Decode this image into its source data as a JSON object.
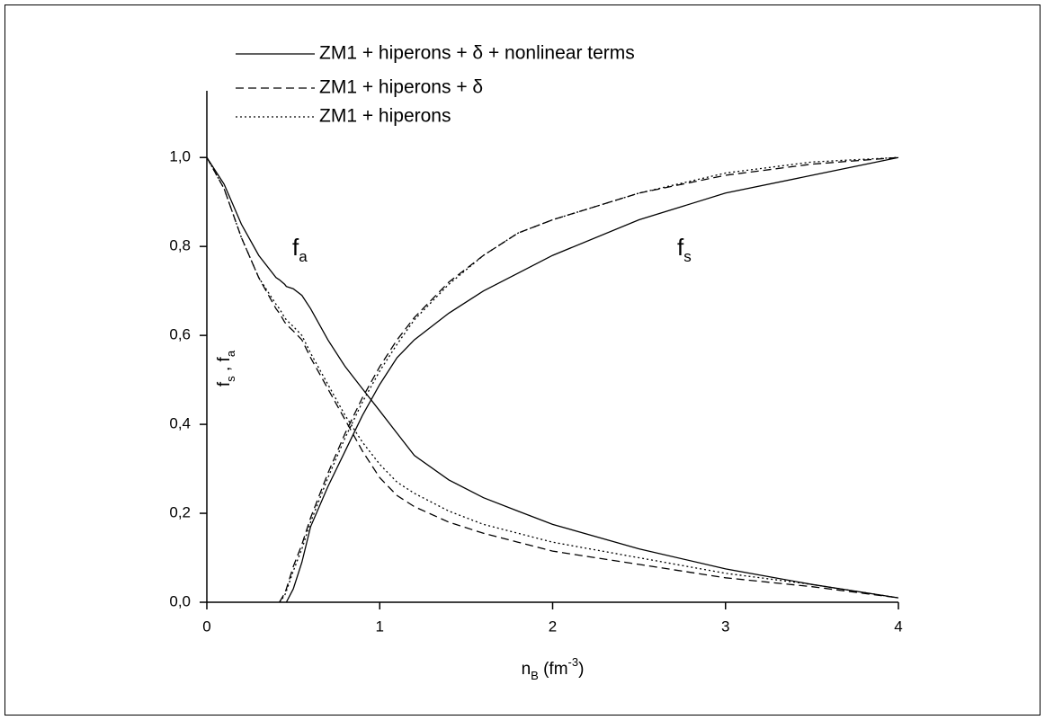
{
  "chart_data": {
    "type": "line",
    "x_label": [
      "n",
      "B",
      " (fm",
      "-3",
      ")"
    ],
    "y_label": [
      "f",
      "s",
      " , f",
      "a"
    ],
    "annotations": [
      {
        "text": "f",
        "sub": "a"
      },
      {
        "text": "f",
        "sub": "s"
      }
    ],
    "x": [
      0,
      0.1,
      0.2,
      0.3,
      0.4,
      0.42,
      0.45,
      0.46,
      0.5,
      0.55,
      0.6,
      0.7,
      0.8,
      0.9,
      1.0,
      1.1,
      1.2,
      1.4,
      1.6,
      1.8,
      2.0,
      2.5,
      3.0,
      3.5,
      4.0
    ],
    "series": [
      {
        "name": "ZM1 + hiperons + δ + nonlinear terms",
        "color": "#000000",
        "dash": "solid",
        "fa": [
          1.0,
          0.94,
          0.85,
          0.78,
          0.73,
          0.725,
          0.715,
          0.71,
          0.705,
          0.69,
          0.66,
          0.59,
          0.53,
          0.48,
          0.43,
          0.38,
          0.33,
          0.275,
          0.235,
          0.205,
          0.175,
          0.12,
          0.075,
          0.04,
          0.01
        ],
        "fs": [
          null,
          null,
          null,
          null,
          null,
          null,
          null,
          0.0,
          0.03,
          0.09,
          0.17,
          0.26,
          0.34,
          0.42,
          0.49,
          0.55,
          0.59,
          0.65,
          0.7,
          0.74,
          0.78,
          0.86,
          0.92,
          0.96,
          1.0
        ]
      },
      {
        "name": "ZM1 + hiperons + δ",
        "color": "#000000",
        "dash": "dashed",
        "fa": [
          1.0,
          0.93,
          0.82,
          0.73,
          0.66,
          0.65,
          0.63,
          0.625,
          0.61,
          0.59,
          0.55,
          0.48,
          0.41,
          0.34,
          0.28,
          0.24,
          0.215,
          0.18,
          0.155,
          0.135,
          0.115,
          0.085,
          0.055,
          0.035,
          0.01
        ],
        "fs": [
          null,
          null,
          null,
          null,
          null,
          0.0,
          0.02,
          0.03,
          0.08,
          0.13,
          0.19,
          0.29,
          0.38,
          0.46,
          0.53,
          0.59,
          0.64,
          0.72,
          0.78,
          0.83,
          0.86,
          0.92,
          0.96,
          0.985,
          1.0
        ]
      },
      {
        "name": "ZM1 + hiperons",
        "color": "#000000",
        "dash": "dotted",
        "fa": [
          1.0,
          0.93,
          0.82,
          0.73,
          0.67,
          0.66,
          0.64,
          0.635,
          0.62,
          0.6,
          0.56,
          0.49,
          0.42,
          0.36,
          0.31,
          0.27,
          0.245,
          0.205,
          0.175,
          0.155,
          0.135,
          0.1,
          0.065,
          0.04,
          0.01
        ],
        "fs": [
          null,
          null,
          null,
          null,
          null,
          0.0,
          0.015,
          0.025,
          0.07,
          0.12,
          0.18,
          0.28,
          0.37,
          0.45,
          0.52,
          0.58,
          0.635,
          0.715,
          0.78,
          0.83,
          0.86,
          0.92,
          0.965,
          0.99,
          1.0
        ]
      }
    ],
    "xlim": [
      0,
      4
    ],
    "xticks": [
      0,
      1,
      2,
      3,
      4
    ],
    "ylim": [
      0,
      1.15
    ],
    "yticks": [
      {
        "value": 0,
        "label": "0,0"
      },
      {
        "value": 0.2,
        "label": "0,2"
      },
      {
        "value": 0.4,
        "label": "0,4"
      },
      {
        "value": 0.6,
        "label": "0,6"
      },
      {
        "value": 0.8,
        "label": "0,8"
      },
      {
        "value": 1.0,
        "label": "1,0"
      }
    ],
    "grid": false,
    "legend": "top"
  }
}
